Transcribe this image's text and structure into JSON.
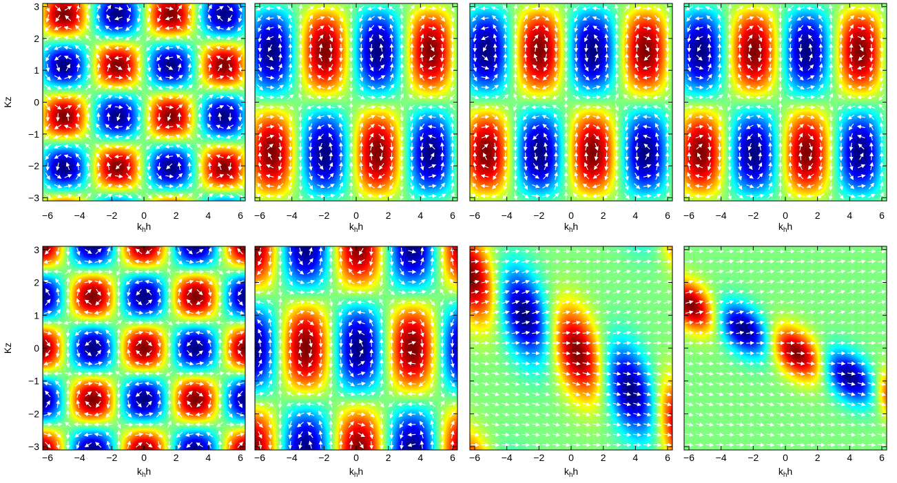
{
  "chart_data": [
    {
      "type": "heatmap",
      "field": "vortex-checker",
      "ylabel": "Kz",
      "xlabel": "k_h h",
      "xlabel_main": "k",
      "xlabel_sub": "h",
      "xlabel_tail": "h",
      "xlim": [
        -6.3,
        6.3
      ],
      "ylim": [
        -3.1,
        3.1
      ],
      "x_ticks": [
        -6,
        -4,
        -2,
        0,
        2,
        4,
        6
      ],
      "y_ticks": [
        -3,
        -2,
        -1,
        0,
        1,
        2,
        3
      ],
      "x_tick_labels": [
        "−6",
        "−4",
        "−2",
        "0",
        "2",
        "4",
        "6"
      ],
      "y_tick_labels": [
        "−3",
        "−2",
        "−1",
        "0",
        "1",
        "2",
        "3"
      ],
      "vectors": "white arrows"
    },
    {
      "type": "heatmap",
      "field": "two-row-cells",
      "xlabel": "k_h h",
      "xlabel_main": "k",
      "xlabel_sub": "h",
      "xlabel_tail": "h",
      "xlim": [
        -6.3,
        6.3
      ],
      "ylim": [
        -3.1,
        3.1
      ],
      "x_ticks": [
        -6,
        -4,
        -2,
        0,
        2,
        4,
        6
      ],
      "x_tick_labels": [
        "−6",
        "−4",
        "−2",
        "0",
        "2",
        "4",
        "6"
      ],
      "vectors": "white arrows"
    },
    {
      "type": "heatmap",
      "field": "two-row-cells",
      "xlabel": "k_h h",
      "xlabel_main": "k",
      "xlabel_sub": "h",
      "xlabel_tail": "h",
      "xlim": [
        -6.3,
        6.3
      ],
      "ylim": [
        -3.1,
        3.1
      ],
      "x_ticks": [
        -6,
        -4,
        -2,
        0,
        2,
        4,
        6
      ],
      "x_tick_labels": [
        "−6",
        "−4",
        "−2",
        "0",
        "2",
        "4",
        "6"
      ],
      "vectors": "white arrows"
    },
    {
      "type": "heatmap",
      "field": "two-row-cells",
      "xlabel": "k_h h",
      "xlabel_main": "k",
      "xlabel_sub": "h",
      "xlabel_tail": "h",
      "xlim": [
        -6.3,
        6.3
      ],
      "ylim": [
        -3.1,
        3.1
      ],
      "x_ticks": [
        -6,
        -4,
        -2,
        0,
        2,
        4,
        6
      ],
      "x_tick_labels": [
        "−6",
        "−4",
        "−2",
        "0",
        "2",
        "4",
        "6"
      ],
      "vectors": "white arrows"
    },
    {
      "type": "heatmap",
      "field": "dense-checker",
      "ylabel": "Kz",
      "xlabel": "k_h h",
      "xlabel_main": "k",
      "xlabel_sub": "h",
      "xlabel_tail": "h",
      "xlim": [
        -6.3,
        6.3
      ],
      "ylim": [
        -3.1,
        3.1
      ],
      "x_ticks": [
        -6,
        -4,
        -2,
        0,
        2,
        4,
        6
      ],
      "y_ticks": [
        -3,
        -2,
        -1,
        0,
        1,
        2,
        3
      ],
      "x_tick_labels": [
        "−6",
        "−4",
        "−2",
        "0",
        "2",
        "4",
        "6"
      ],
      "y_tick_labels": [
        "−3",
        "−2",
        "−1",
        "0",
        "1",
        "2",
        "3"
      ],
      "vectors": "white arrows"
    },
    {
      "type": "heatmap",
      "field": "middle-row-cells",
      "xlabel": "k_h h",
      "xlabel_main": "k",
      "xlabel_sub": "h",
      "xlabel_tail": "h",
      "xlim": [
        -6.3,
        6.3
      ],
      "ylim": [
        -3.1,
        3.1
      ],
      "x_ticks": [
        -6,
        -4,
        -2,
        0,
        2,
        4,
        6
      ],
      "x_tick_labels": [
        "−6",
        "−4",
        "−2",
        "0",
        "2",
        "4",
        "6"
      ],
      "vectors": "white arrows"
    },
    {
      "type": "heatmap",
      "field": "tilted-bands",
      "tilt": 0.35,
      "xlabel": "k_h h",
      "xlabel_main": "k",
      "xlabel_sub": "h",
      "xlabel_tail": "h",
      "xlim": [
        -6.3,
        6.3
      ],
      "ylim": [
        -3.1,
        3.1
      ],
      "x_ticks": [
        -6,
        -4,
        -2,
        0,
        2,
        4,
        6
      ],
      "x_tick_labels": [
        "−6",
        "−4",
        "−2",
        "0",
        "2",
        "4",
        "6"
      ],
      "vectors": "white arrows"
    },
    {
      "type": "heatmap",
      "field": "tilted-bands-thin",
      "tilt": 0.22,
      "xlabel": "k_h h",
      "xlabel_main": "k",
      "xlabel_sub": "h",
      "xlabel_tail": "h",
      "xlim": [
        -6.3,
        6.3
      ],
      "ylim": [
        -3.1,
        3.1
      ],
      "x_ticks": [
        -6,
        -4,
        -2,
        0,
        2,
        4,
        6
      ],
      "x_tick_labels": [
        "−6",
        "−4",
        "−2",
        "0",
        "2",
        "4",
        "6"
      ],
      "vectors": "white arrows"
    }
  ],
  "colormap": [
    "#00007f",
    "#0000ff",
    "#007fff",
    "#00ffff",
    "#7fff7f",
    "#ffff00",
    "#ff7f00",
    "#ff0000",
    "#7f0000"
  ]
}
